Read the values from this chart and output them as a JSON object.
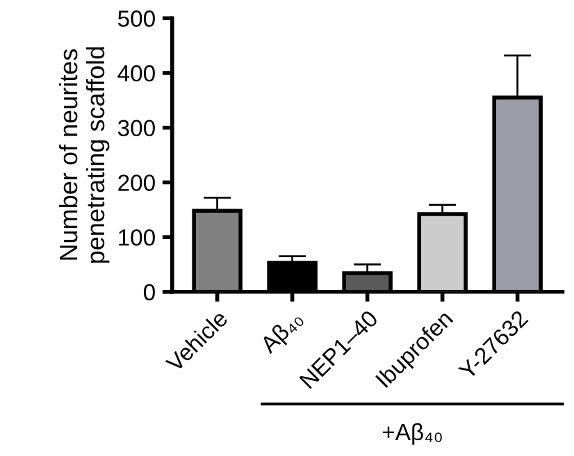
{
  "chart_data": {
    "type": "bar",
    "ylabel": "Number of neurites\npenetrating scaffold",
    "categories": [
      "Vehicle",
      "Aβ₄₀",
      "NEP1–40",
      "Ibuprofen",
      "Y-27632"
    ],
    "values": [
      148,
      53,
      34,
      142,
      355
    ],
    "colors": [
      "#808080",
      "#000000",
      "#5a5a5a",
      "#cccccc",
      "#9c9ca6"
    ],
    "errors": [
      [
        148,
        172
      ],
      [
        53,
        65
      ],
      [
        34,
        50
      ],
      [
        142,
        159
      ],
      [
        355,
        432
      ]
    ],
    "ylim": [
      0,
      500
    ],
    "yticks": [
      0,
      100,
      200,
      300,
      400,
      500
    ],
    "annotations": [
      "+Aβ₄₀"
    ],
    "grid": false,
    "legend": false
  }
}
